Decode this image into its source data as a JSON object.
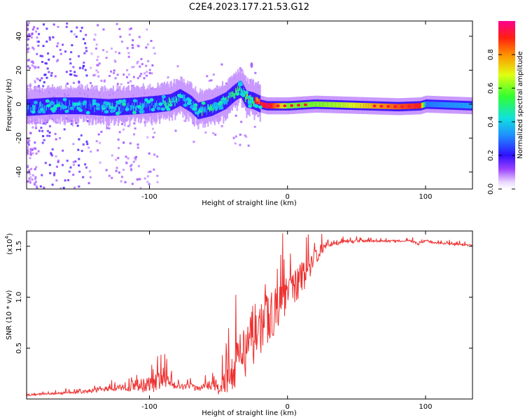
{
  "title": "C2E4.2023.177.21.53.G12",
  "colors": {
    "snr_line": "#ee3030",
    "axis": "#000000",
    "background": "#ffffff"
  },
  "colorbar": {
    "label": "Normalized spectral amplitude",
    "ticks": [
      "0.0",
      "0.2",
      "0.4",
      "0.6",
      "0.8"
    ],
    "range": [
      0.0,
      1.0
    ],
    "colormap": "rainbow"
  },
  "chart_data": [
    {
      "type": "heatmap",
      "title": "C2E4.2023.177.21.53.G12",
      "xlabel": "Height of straight line (km)",
      "ylabel": "Frequency (Hz)",
      "xlim": [
        -189,
        134
      ],
      "ylim": [
        -50,
        49
      ],
      "xticks": [
        -100,
        0,
        100
      ],
      "xtick_labels": [
        "-100",
        "0",
        "100"
      ],
      "yticks": [
        -40,
        -20,
        0,
        20,
        40
      ],
      "ytick_labels": [
        "-40",
        "-20",
        "0",
        "20",
        "40"
      ],
      "ridge": {
        "x": [
          -189,
          -170,
          -150,
          -130,
          -110,
          -95,
          -85,
          -78,
          -70,
          -65,
          -55,
          -45,
          -38,
          -34,
          -30,
          -25,
          -20,
          -15,
          -10,
          0,
          20,
          40,
          60,
          80,
          96,
          100,
          134
        ],
        "freq_hz": [
          -2,
          -1,
          -1,
          -2,
          -1,
          0,
          1,
          4,
          0,
          -4,
          -2,
          2,
          7,
          9,
          3,
          2,
          0,
          -1,
          -1,
          -1,
          0,
          -0.5,
          -1,
          -1.5,
          -1,
          0,
          -1
        ],
        "amplitude": [
          0.35,
          0.3,
          0.3,
          0.35,
          0.35,
          0.3,
          0.45,
          0.3,
          0.3,
          0.45,
          0.45,
          0.5,
          0.5,
          0.45,
          0.6,
          0.85,
          0.9,
          0.95,
          0.85,
          0.6,
          0.6,
          0.65,
          0.75,
          0.85,
          0.9,
          0.3,
          0.35
        ]
      },
      "grid": false
    },
    {
      "type": "line",
      "xlabel": "Height of straight line (km)",
      "ylabel": "SNR (10 * v/v)",
      "y_multiplier_label": "(x10",
      "y_multiplier_exp": "4",
      "xlim": [
        -189,
        134
      ],
      "ylim": [
        0,
        1.65
      ],
      "xticks": [
        -100,
        0,
        100
      ],
      "xtick_labels": [
        "-100",
        "0",
        "100"
      ],
      "yticks": [
        0.5,
        1.0,
        1.5
      ],
      "ytick_labels": [
        "0.5",
        "1.0",
        "1.5"
      ],
      "series": [
        {
          "x": [
            -189,
            -175,
            -160,
            -145,
            -130,
            -120,
            -110,
            -100,
            -95,
            -90,
            -85,
            -80,
            -75,
            -70,
            -65,
            -60,
            -55,
            -50,
            -45,
            -40,
            -35,
            -30,
            -25,
            -20,
            -15,
            -10,
            -5,
            0,
            5,
            10,
            15,
            20,
            25,
            30,
            40,
            50,
            60,
            70,
            80,
            90,
            95,
            100,
            110,
            120,
            134
          ],
          "values": [
            0.04,
            0.05,
            0.06,
            0.07,
            0.1,
            0.12,
            0.13,
            0.14,
            0.16,
            0.2,
            0.16,
            0.13,
            0.12,
            0.13,
            0.1,
            0.12,
            0.14,
            0.12,
            0.18,
            0.28,
            0.4,
            0.5,
            0.62,
            0.7,
            0.78,
            0.85,
            0.95,
            1.02,
            1.1,
            1.18,
            1.3,
            1.4,
            1.47,
            1.51,
            1.54,
            1.55,
            1.55,
            1.55,
            1.55,
            1.55,
            1.52,
            1.55,
            1.53,
            1.52,
            1.51
          ],
          "spread": [
            0.02,
            0.02,
            0.02,
            0.03,
            0.05,
            0.08,
            0.12,
            0.16,
            0.18,
            0.24,
            0.12,
            0.06,
            0.05,
            0.06,
            0.05,
            0.06,
            0.1,
            0.15,
            0.25,
            0.4,
            0.55,
            0.6,
            0.6,
            0.55,
            0.5,
            0.45,
            0.4,
            0.35,
            0.35,
            0.35,
            0.3,
            0.2,
            0.1,
            0.05,
            0.03,
            0.03,
            0.02,
            0.02,
            0.02,
            0.02,
            0.03,
            0.03,
            0.02,
            0.02,
            0.02
          ]
        }
      ],
      "grid": false
    }
  ]
}
